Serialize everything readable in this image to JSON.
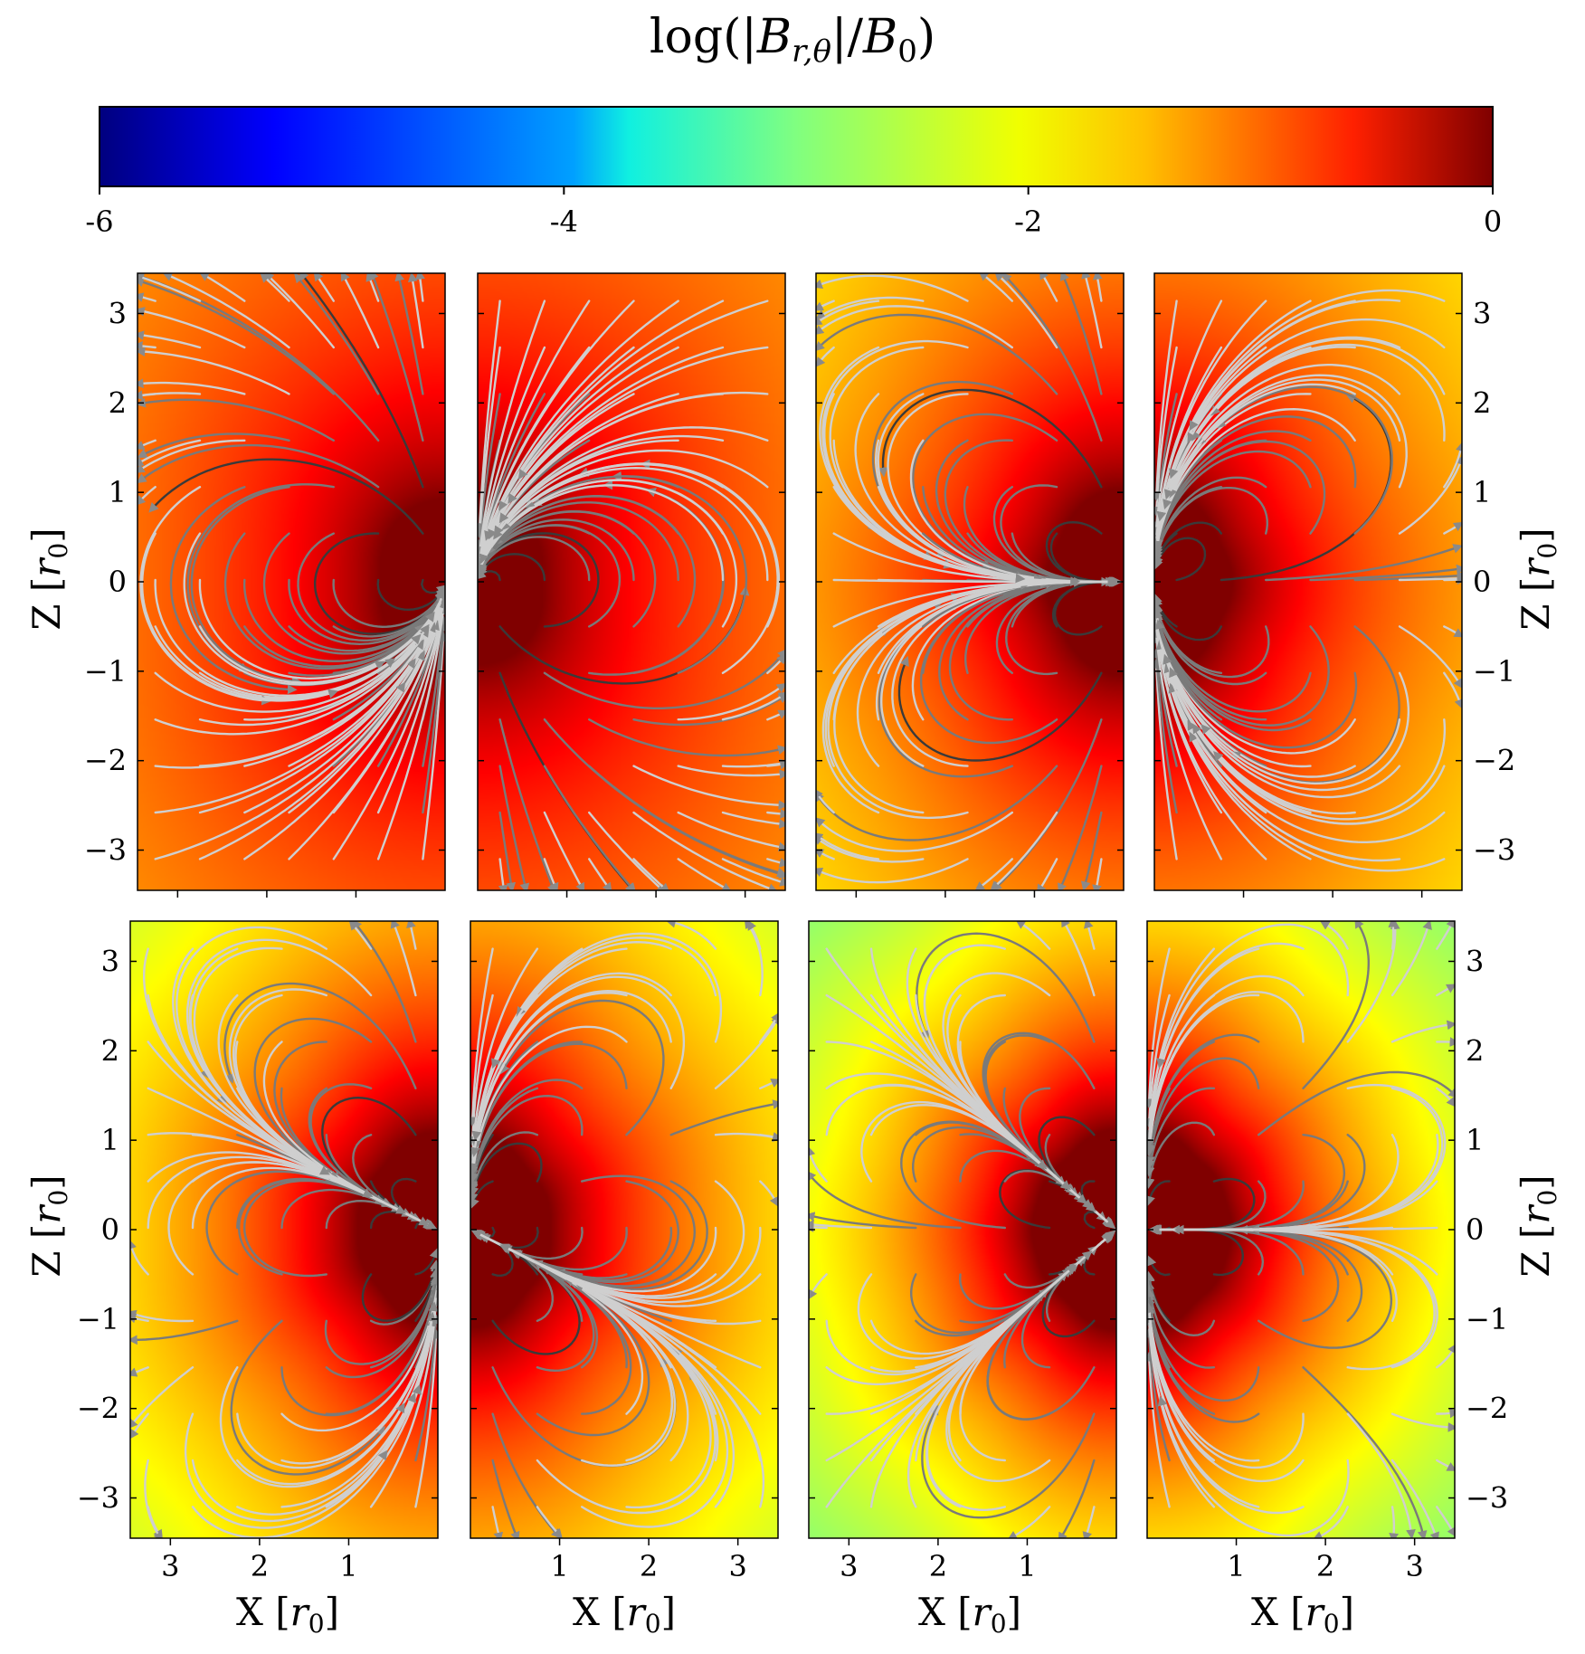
{
  "colorbar": {
    "title": "log(|B_{r,θ}|/B_0)",
    "title_parts": {
      "a": "log(|",
      "b": "B",
      "c": "r,θ",
      "d": "|/",
      "e": "B",
      "f": "0",
      "g": ")"
    },
    "vmin": -6,
    "vmax": 0,
    "ticks": [
      {
        "value": -6,
        "label": "-6"
      },
      {
        "value": -4,
        "label": "-4"
      },
      {
        "value": -2,
        "label": "-2"
      },
      {
        "value": 0,
        "label": "0"
      }
    ],
    "colormap": "jet"
  },
  "axes": {
    "x_label_main": "X [",
    "x_label_var": "r",
    "x_label_sub": "0",
    "x_label_end": "]",
    "z_label_main": "Z [",
    "z_label_var": "r",
    "z_label_sub": "0",
    "z_label_end": "]",
    "z_ticks": [
      "−3",
      "−2",
      "−1",
      "0",
      "1",
      "2",
      "3"
    ],
    "z_tick_values": [
      -3,
      -2,
      -1,
      0,
      1,
      2,
      3
    ],
    "x_ticks_left": [
      "3",
      "2",
      "1"
    ],
    "x_ticks_right": [
      "1",
      "2",
      "3"
    ],
    "x_tick_values": [
      1,
      2,
      3
    ],
    "xlim": [
      0,
      3.45
    ],
    "zlim": [
      -3.45,
      3.45
    ]
  },
  "chart_data": [
    {
      "type": "heatmap",
      "panel": "top-1",
      "mirrored": true,
      "field": "dipole",
      "multipole_l": 1,
      "sign": 1,
      "colorbar_range": [
        -6,
        0
      ]
    },
    {
      "type": "heatmap",
      "panel": "top-2",
      "mirrored": false,
      "field": "dipole",
      "multipole_l": 1,
      "sign": -1,
      "colorbar_range": [
        -6,
        0
      ]
    },
    {
      "type": "heatmap",
      "panel": "top-3",
      "mirrored": true,
      "field": "quadrupole",
      "multipole_l": 2,
      "sign": 1,
      "colorbar_range": [
        -6,
        0
      ]
    },
    {
      "type": "heatmap",
      "panel": "top-4",
      "mirrored": false,
      "field": "quadrupole",
      "multipole_l": 2,
      "sign": -1,
      "colorbar_range": [
        -6,
        0
      ]
    },
    {
      "type": "heatmap",
      "panel": "bottom-1",
      "mirrored": true,
      "field": "octupole",
      "multipole_l": 3,
      "sign": 1,
      "colorbar_range": [
        -6,
        0
      ]
    },
    {
      "type": "heatmap",
      "panel": "bottom-2",
      "mirrored": false,
      "field": "octupole",
      "multipole_l": 3,
      "sign": -1,
      "colorbar_range": [
        -6,
        0
      ]
    },
    {
      "type": "heatmap",
      "panel": "bottom-3",
      "mirrored": true,
      "field": "hexadecapole",
      "multipole_l": 4,
      "sign": 1,
      "colorbar_range": [
        -6,
        0
      ]
    },
    {
      "type": "heatmap",
      "panel": "bottom-4",
      "mirrored": false,
      "field": "hexadecapole",
      "multipole_l": 4,
      "sign": -1,
      "colorbar_range": [
        -6,
        0
      ]
    }
  ]
}
